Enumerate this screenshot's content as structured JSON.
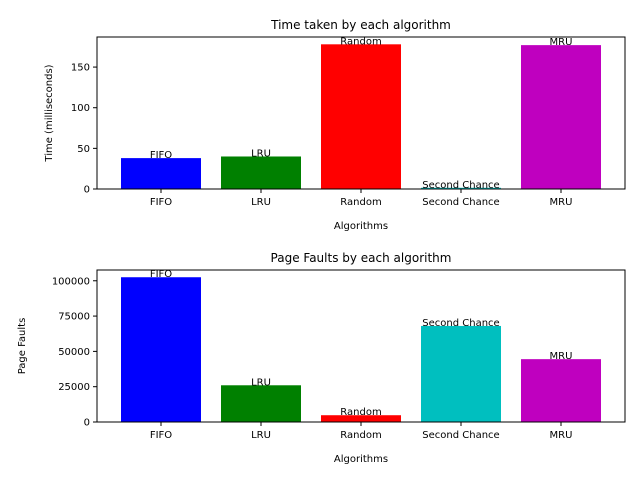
{
  "chart_data": [
    {
      "type": "bar",
      "title": "Time taken by each algorithm",
      "xlabel": "Algorithms",
      "ylabel": "Time (milliseconds)",
      "categories": [
        "FIFO",
        "LRU",
        "Random",
        "Second Chance",
        "MRU"
      ],
      "values": [
        38,
        40,
        178,
        1.5,
        177
      ],
      "bar_labels": [
        "FIFO",
        "LRU",
        "Random",
        "Second Chance",
        "MRU"
      ],
      "colors": [
        "#0000ff",
        "#008000",
        "#ff0000",
        "#00bfbf",
        "#bf00bf"
      ],
      "ylim": [
        0,
        187
      ],
      "yticks": [
        0,
        50,
        100,
        150
      ],
      "ytick_labels": [
        "0",
        "50",
        "100",
        "150"
      ],
      "grid": false
    },
    {
      "type": "bar",
      "title": "Page Faults by each algorithm",
      "xlabel": "Algorithms",
      "ylabel": "Page Faults",
      "categories": [
        "FIFO",
        "LRU",
        "Random",
        "Second Chance",
        "MRU"
      ],
      "values": [
        102500,
        26000,
        4800,
        68000,
        44500
      ],
      "bar_labels": [
        "FIFO",
        "LRU",
        "Random",
        "Second Chance",
        "MRU"
      ],
      "colors": [
        "#0000ff",
        "#008000",
        "#ff0000",
        "#00bfbf",
        "#bf00bf"
      ],
      "ylim": [
        0,
        107625
      ],
      "yticks": [
        0,
        25000,
        50000,
        75000,
        100000
      ],
      "ytick_labels": [
        "0",
        "25000",
        "50000",
        "75000",
        "100000"
      ],
      "grid": false
    }
  ]
}
